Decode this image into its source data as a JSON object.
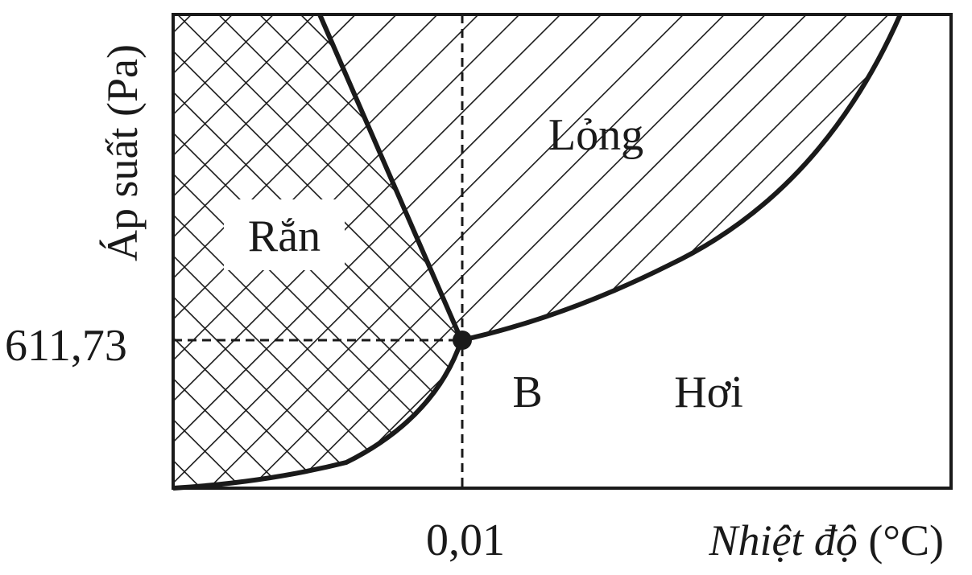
{
  "phase_labels": {
    "solid": "Rắn",
    "liquid": "Lỏng",
    "vapor": "Hơi"
  },
  "point_label": "B",
  "ticks": {
    "x_value": "0,01",
    "y_value": "611,73"
  },
  "axes": {
    "x_label_italic": "Nhiệt độ",
    "x_unit": "(°C)",
    "y_label": "Áp suất (Pa)"
  },
  "colors": {
    "ink": "#1a1a1a",
    "background": "#ffffff"
  }
}
